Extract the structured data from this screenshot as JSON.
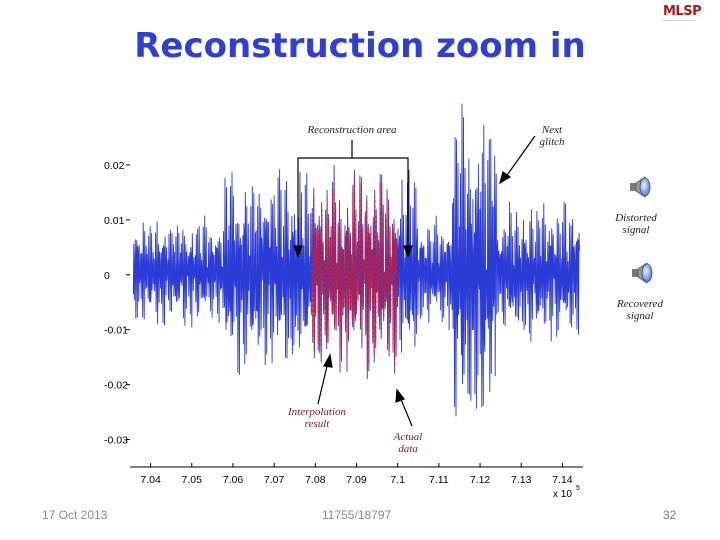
{
  "slide": {
    "title": "Reconstruction zoom in",
    "logo_text": "MLSP",
    "footer_date": "17 Oct 2013",
    "footer_course": "11755/18797",
    "page_number": "32"
  },
  "annotations": {
    "reconstruction_area": "Reconstruction area",
    "next_glitch": "Next glitch",
    "distorted_signal": "Distorted signal",
    "recovered_signal": "Recovered signal",
    "interpolation_result": "Interpolation result",
    "actual_data": "Actual data"
  },
  "chart_data": {
    "type": "line",
    "x_tick_labels": [
      "7.04",
      "7.05",
      "7.06",
      "7.07",
      "7.08",
      "7.09",
      "7.1",
      "7.11",
      "7.12",
      "7.13",
      "7.14"
    ],
    "x_scale_label": "x 10",
    "x_scale_exponent": "5",
    "y_tick_labels": [
      "0.02",
      "0.01",
      "0",
      "-0.01",
      "-0.02",
      "-0.03"
    ],
    "xlim": [
      7.035,
      7.145
    ],
    "ylim": [
      -0.035,
      0.03
    ],
    "series": [
      {
        "color": "#2b3bd6"
      },
      {
        "color": "#c41e3a"
      }
    ],
    "reconstruction_range": [
      7.079,
      7.1
    ]
  }
}
